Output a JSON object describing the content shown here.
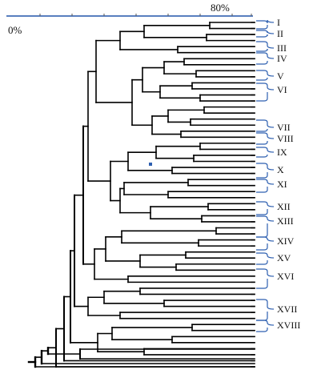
{
  "scale": {
    "min_label": "0%",
    "max_label": "80%",
    "axis_color": "#2255aa"
  },
  "colors": {
    "tree": "#000000",
    "bracket": "#2d5fb0"
  },
  "leaf_count": 58,
  "clusters": [
    {
      "label": "I"
    },
    {
      "label": "II"
    },
    {
      "label": "III"
    },
    {
      "label": "IV"
    },
    {
      "label": "V"
    },
    {
      "label": "VI"
    },
    {
      "label": "VII"
    },
    {
      "label": "VIII"
    },
    {
      "label": "IX"
    },
    {
      "label": "X"
    },
    {
      "label": "XI"
    },
    {
      "label": "XII"
    },
    {
      "label": "XIII"
    },
    {
      "label": "XIV"
    },
    {
      "label": "XV"
    },
    {
      "label": "XVI"
    },
    {
      "label": "XVII"
    },
    {
      "label": "XVIII"
    }
  ]
}
